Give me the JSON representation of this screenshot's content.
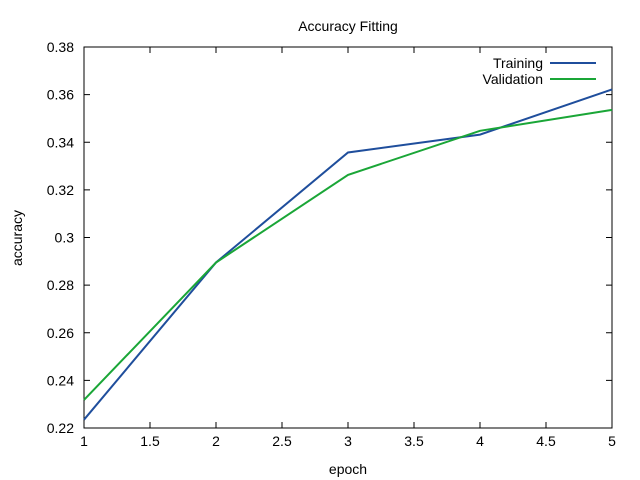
{
  "chart_data": {
    "type": "line",
    "title": "Accuracy Fitting",
    "xlabel": "epoch",
    "ylabel": "accuracy",
    "xlim": [
      1,
      5
    ],
    "ylim": [
      0.22,
      0.38
    ],
    "x_ticks": [
      "1",
      "1.5",
      "2",
      "2.5",
      "3",
      "3.5",
      "4",
      "4.5",
      "5"
    ],
    "y_ticks": [
      "0.22",
      "0.24",
      "0.26",
      "0.28",
      "0.3",
      "0.32",
      "0.34",
      "0.36",
      "0.38"
    ],
    "grid": false,
    "legend_position": "top-right",
    "x": [
      1,
      2,
      3,
      4,
      5
    ],
    "series": [
      {
        "name": "Training",
        "color": "#1f4e9c",
        "values": [
          0.2235,
          0.2895,
          0.3357,
          0.3432,
          0.3622
        ]
      },
      {
        "name": "Validation",
        "color": "#1aa637",
        "values": [
          0.2318,
          0.2895,
          0.3263,
          0.3448,
          0.3536
        ]
      }
    ]
  }
}
